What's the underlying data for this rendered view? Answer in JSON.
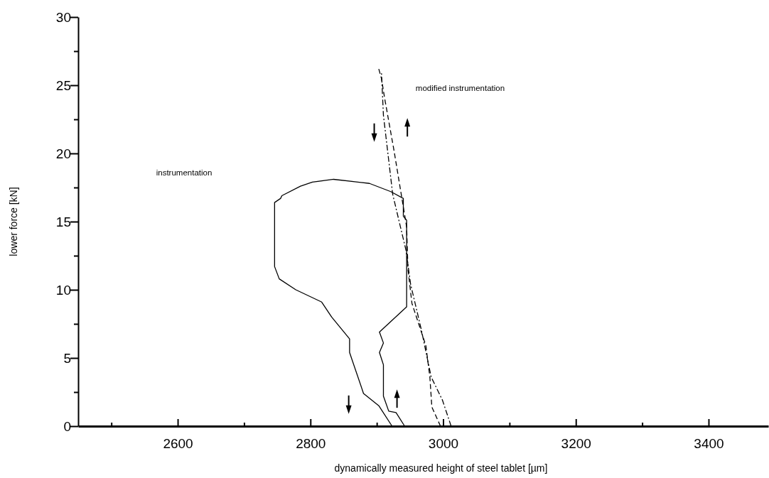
{
  "chart_data": {
    "type": "line",
    "xlabel": "dynamically measured height of steel tablet [µm]",
    "ylabel": "lower force [kN]",
    "xlim": [
      2450,
      3490
    ],
    "ylim": [
      0,
      30
    ],
    "xticks": [
      {
        "value": 2500,
        "label": null
      },
      2600,
      {
        "value": 2700,
        "label": null
      },
      2800,
      {
        "value": 2900,
        "label": null
      },
      3000,
      {
        "value": 3100,
        "label": null
      },
      3200,
      {
        "value": 3300,
        "label": null
      },
      3400
    ],
    "yticks": [
      0,
      {
        "value": 2.5,
        "label": null
      },
      5,
      {
        "value": 7.5,
        "label": null
      },
      10,
      {
        "value": 12.5,
        "label": null
      },
      15,
      {
        "value": 17.5,
        "label": null
      },
      20,
      {
        "value": 22.5,
        "label": null
      },
      25,
      {
        "value": 27.5,
        "label": null
      },
      30
    ],
    "series": [
      {
        "color": "#000000",
        "line_style": "solid",
        "x": [
          2942,
          2929,
          2918,
          2910,
          2910,
          2904,
          2910,
          2904,
          2945,
          2945,
          2940,
          2940,
          2921,
          2889,
          2835,
          2803,
          2785,
          2757,
          2755,
          2746,
          2746,
          2753,
          2778,
          2817,
          2832,
          2859,
          2859,
          2880,
          2903,
          2923
        ],
        "values": [
          0,
          1.0,
          1.1,
          2.2,
          4.5,
          5.4,
          6.1,
          6.9,
          8.75,
          15.1,
          15.4,
          16.7,
          17.2,
          17.8,
          18.1,
          17.9,
          17.6,
          16.9,
          16.7,
          16.4,
          11.7,
          10.8,
          10.0,
          9.1,
          8.0,
          6.4,
          5.4,
          2.4,
          1.5,
          0
        ]
      },
      {
        "color": "#000000",
        "line_style": "dashed",
        "x": [
          2996,
          2983,
          2980,
          2974,
          2953,
          2947,
          2945,
          2926,
          2912,
          2907,
          2903
        ],
        "values": [
          0,
          1.4,
          3.6,
          5.9,
          9.0,
          11.5,
          14.6,
          20.2,
          24.0,
          25.5,
          26.2
        ]
      },
      {
        "color": "#000000",
        "line_style": "dashdot",
        "x": [
          3012,
          2999,
          2982,
          2967,
          2951,
          2944,
          2924,
          2910,
          2907
        ],
        "values": [
          0,
          1.9,
          3.6,
          7.1,
          10.4,
          12.9,
          17.0,
          22.8,
          26.0
        ]
      }
    ],
    "annotations": [
      "modified instrumentation",
      "instrumentation"
    ],
    "grid": false,
    "marker": "none"
  }
}
